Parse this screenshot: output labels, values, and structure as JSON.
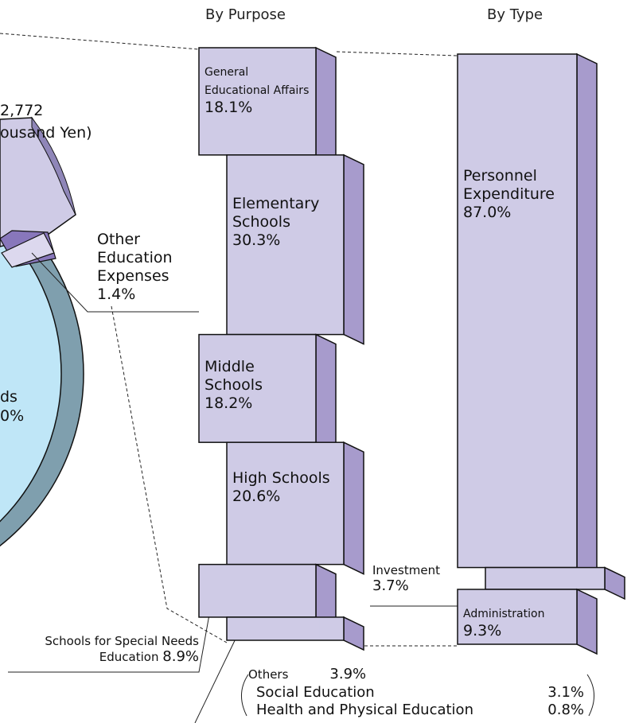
{
  "chart_data": [
    {
      "type": "stacked_bar",
      "title": "By Purpose",
      "categories": [
        "General Educational Affairs",
        "Elementary Schools",
        "Middle Schools",
        "High Schools",
        "Schools for Special Needs Education",
        "Others"
      ],
      "values": [
        18.1,
        30.3,
        18.2,
        20.6,
        8.9,
        3.9
      ],
      "value_labels": [
        "18.1%",
        "30.3%",
        "18.2%",
        "20.6%",
        "8.9%",
        "3.9%"
      ],
      "sub_categories": [
        "Social Education",
        "Health and Physical Education"
      ],
      "sub_values": [
        3.1,
        0.8
      ],
      "sub_value_labels": [
        "3.1%",
        "0.8%"
      ],
      "color": "#cfcbe6",
      "side_color": "#a79bcc"
    },
    {
      "type": "stacked_bar",
      "title": "By Type",
      "categories": [
        "Personnel Expenditure",
        "Investment",
        "Administration"
      ],
      "values": [
        87.0,
        3.7,
        9.3
      ],
      "value_labels": [
        "87.0%",
        "3.7%",
        "9.3%"
      ],
      "color": "#cfcbe6",
      "side_color": "#a79bcc"
    }
  ],
  "pie_fragment": {
    "texts": [
      "2,772",
      "ousand Yen)",
      "ds",
      "0%"
    ],
    "slice_label": "Other Education Expenses",
    "slice_value_label": "1.4%"
  }
}
